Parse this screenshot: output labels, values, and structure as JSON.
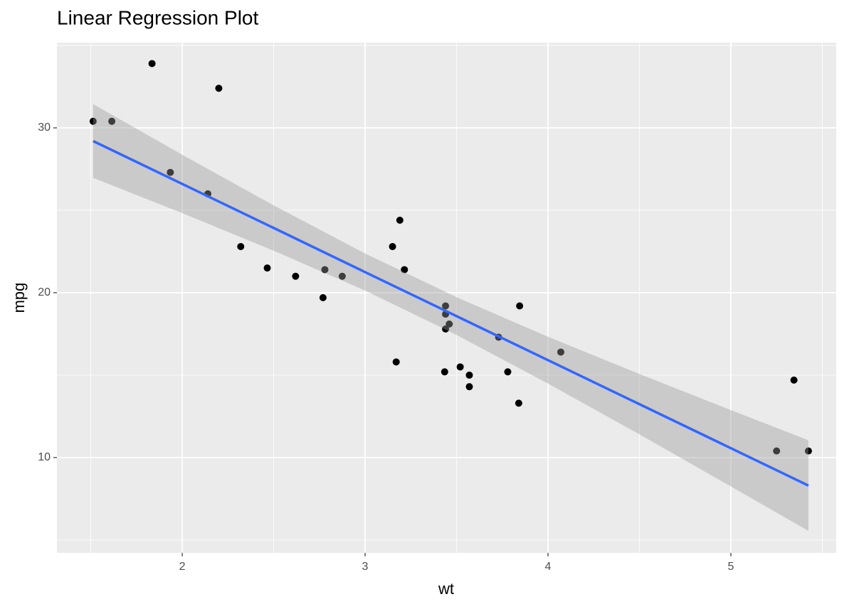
{
  "chart_data": {
    "type": "scatter",
    "title": "Linear Regression Plot",
    "x_label": "wt",
    "y_label": "mpg",
    "points": {
      "color": "#000000",
      "x": [
        2.62,
        2.875,
        2.32,
        3.215,
        3.44,
        3.46,
        3.57,
        3.19,
        3.15,
        3.44,
        3.44,
        4.07,
        3.73,
        3.78,
        5.25,
        5.424,
        5.345,
        2.2,
        1.615,
        1.835,
        2.465,
        3.52,
        3.435,
        3.84,
        3.845,
        1.935,
        2.14,
        1.513,
        3.17,
        2.77,
        3.57,
        2.78
      ],
      "y": [
        21.0,
        21.0,
        22.8,
        21.4,
        18.7,
        18.1,
        14.3,
        24.4,
        22.8,
        19.2,
        17.8,
        16.4,
        17.3,
        15.2,
        10.4,
        10.4,
        14.7,
        32.4,
        30.4,
        33.9,
        21.5,
        15.5,
        15.2,
        13.3,
        19.2,
        27.3,
        26.0,
        30.4,
        15.8,
        19.7,
        15.0,
        21.4
      ]
    },
    "fit": {
      "color": "#3366FF",
      "band_color": "#999999",
      "x": [
        1.513,
        2,
        2.5,
        3,
        3.5,
        4,
        4.5,
        5,
        5.424
      ],
      "y": [
        29.2,
        26.6,
        23.93,
        21.25,
        18.58,
        15.91,
        13.24,
        10.57,
        8.3
      ],
      "lower": [
        26.97,
        24.83,
        22.55,
        20.13,
        17.44,
        14.49,
        11.41,
        8.25,
        5.55
      ],
      "upper": [
        31.44,
        28.37,
        25.3,
        22.38,
        19.73,
        17.33,
        15.07,
        12.88,
        11.05
      ]
    },
    "xlim": [
      1.315,
      5.576
    ],
    "ylim": [
      4.22,
      35.17
    ],
    "xticks": [
      2,
      3,
      4,
      5
    ],
    "yticks": [
      10,
      20,
      30
    ],
    "grid": true
  }
}
